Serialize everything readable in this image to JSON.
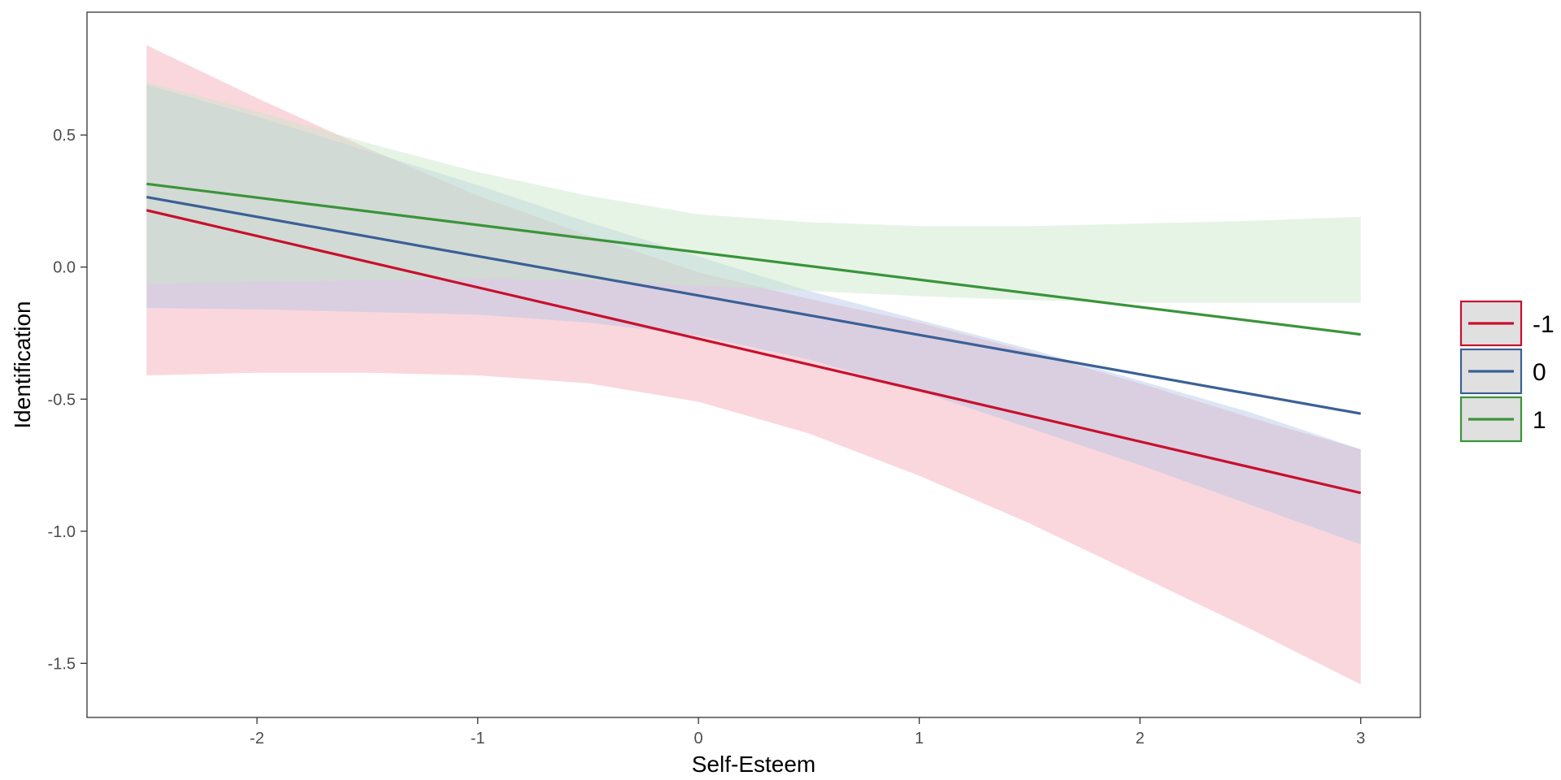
{
  "chart_data": {
    "type": "line",
    "title": "",
    "xlabel": "Self-Esteem",
    "ylabel": "Identification",
    "xlim": [
      -2.77,
      3.27
    ],
    "ylim": [
      -1.705,
      0.965
    ],
    "x_ticks": [
      -2,
      -1,
      0,
      1,
      2,
      3
    ],
    "x_tick_labels": [
      "-2",
      "-1",
      "0",
      "1",
      "2",
      "3"
    ],
    "y_ticks": [
      -1.5,
      -1.0,
      -0.5,
      0.0,
      0.5
    ],
    "y_tick_labels": [
      "-1.5",
      "-1.0",
      "-0.5",
      "0.0",
      "0.5"
    ],
    "grid": false,
    "legend_position": "right",
    "band_x": [
      -2.5,
      -2,
      -1.5,
      -1,
      -0.5,
      0,
      0.5,
      1,
      1.5,
      2,
      2.5,
      3
    ],
    "series": [
      {
        "name": "-1",
        "color": "#c8102e",
        "fill": "#f4a6b4",
        "x": [
          -2.5,
          3
        ],
        "y": [
          0.215,
          -0.855
        ],
        "ci_upper": [
          0.84,
          0.64,
          0.45,
          0.27,
          0.12,
          -0.02,
          -0.12,
          -0.21,
          -0.32,
          -0.44,
          -0.57,
          -0.69
        ],
        "ci_lower": [
          -0.41,
          -0.4,
          -0.4,
          -0.41,
          -0.44,
          -0.51,
          -0.63,
          -0.79,
          -0.97,
          -1.17,
          -1.37,
          -1.58
        ]
      },
      {
        "name": "0",
        "color": "#3b6096",
        "fill": "#b3c6e6",
        "x": [
          -2.5,
          3
        ],
        "y": [
          0.265,
          -0.555
        ],
        "ci_upper": [
          0.69,
          0.57,
          0.44,
          0.31,
          0.17,
          0.04,
          -0.09,
          -0.2,
          -0.31,
          -0.43,
          -0.55,
          -0.69
        ],
        "ci_lower": [
          -0.155,
          -0.16,
          -0.17,
          -0.18,
          -0.21,
          -0.26,
          -0.35,
          -0.47,
          -0.61,
          -0.75,
          -0.9,
          -1.05
        ]
      },
      {
        "name": "1",
        "color": "#3a943a",
        "fill": "#c8e6c8",
        "x": [
          -2.5,
          3
        ],
        "y": [
          0.315,
          -0.255
        ],
        "ci_upper": [
          0.7,
          0.59,
          0.47,
          0.36,
          0.27,
          0.2,
          0.17,
          0.155,
          0.155,
          0.165,
          0.175,
          0.19
        ],
        "ci_lower": [
          -0.065,
          -0.055,
          -0.05,
          -0.045,
          -0.05,
          -0.07,
          -0.09,
          -0.11,
          -0.125,
          -0.135,
          -0.135,
          -0.135
        ]
      }
    ]
  }
}
